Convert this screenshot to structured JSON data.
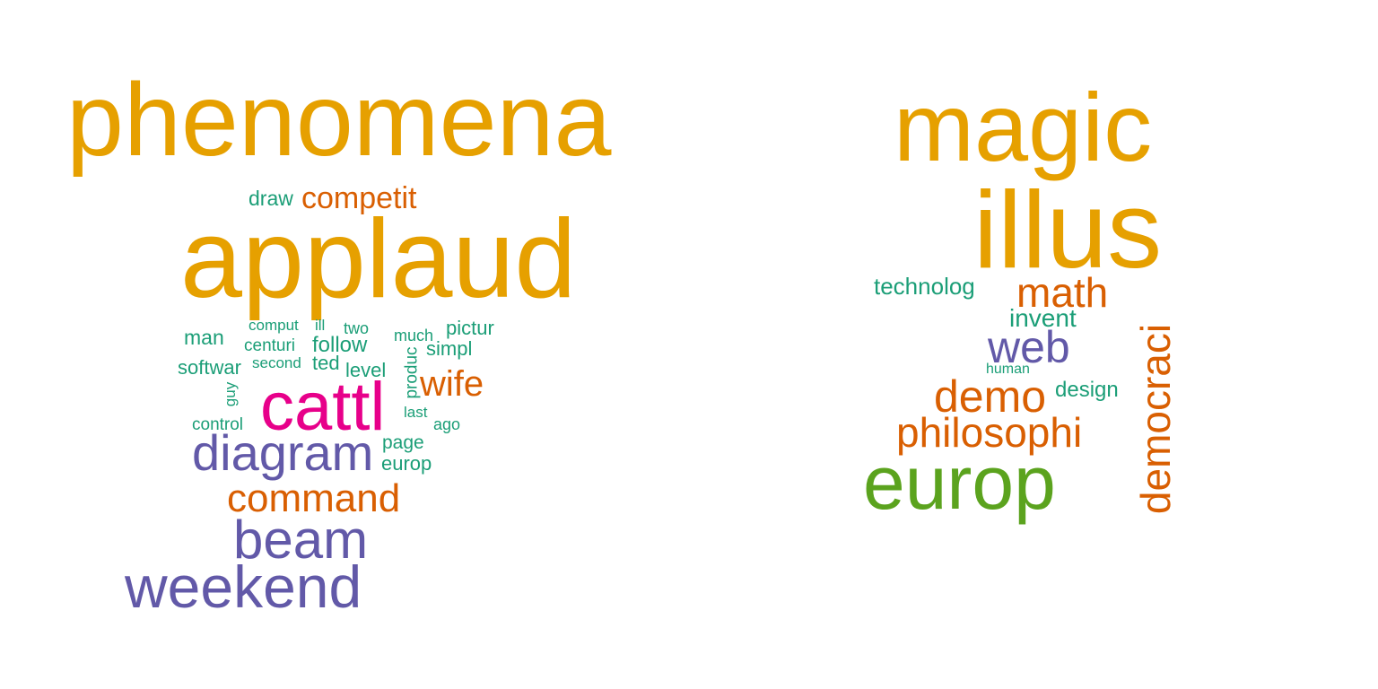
{
  "palette": {
    "gold": "#E6A000",
    "orange": "#D95F02",
    "teal": "#1B9E77",
    "purple": "#6259A8",
    "magenta": "#E7008A",
    "green": "#5BA31E"
  },
  "clouds": [
    {
      "words": [
        {
          "text": "phenomena",
          "color": "gold"
        },
        {
          "text": "draw",
          "color": "teal"
        },
        {
          "text": "competit",
          "color": "orange"
        },
        {
          "text": "applaud",
          "color": "gold"
        },
        {
          "text": "man",
          "color": "teal"
        },
        {
          "text": "comput",
          "color": "teal"
        },
        {
          "text": "ill",
          "color": "teal"
        },
        {
          "text": "two",
          "color": "teal"
        },
        {
          "text": "much",
          "color": "teal"
        },
        {
          "text": "pictur",
          "color": "teal"
        },
        {
          "text": "centuri",
          "color": "teal"
        },
        {
          "text": "follow",
          "color": "teal"
        },
        {
          "text": "simpl",
          "color": "teal"
        },
        {
          "text": "softwar",
          "color": "teal"
        },
        {
          "text": "second",
          "color": "teal"
        },
        {
          "text": "ted",
          "color": "teal"
        },
        {
          "text": "level",
          "color": "teal"
        },
        {
          "text": "produc",
          "color": "teal"
        },
        {
          "text": "wife",
          "color": "orange"
        },
        {
          "text": "guy",
          "color": "teal"
        },
        {
          "text": "cattl",
          "color": "magenta"
        },
        {
          "text": "last",
          "color": "teal"
        },
        {
          "text": "control",
          "color": "teal"
        },
        {
          "text": "ago",
          "color": "teal"
        },
        {
          "text": "diagram",
          "color": "purple"
        },
        {
          "text": "page",
          "color": "teal"
        },
        {
          "text": "europ",
          "color": "teal"
        },
        {
          "text": "command",
          "color": "orange"
        },
        {
          "text": "beam",
          "color": "purple"
        },
        {
          "text": "weekend",
          "color": "purple"
        }
      ]
    },
    {
      "words": [
        {
          "text": "magic",
          "color": "gold"
        },
        {
          "text": "illus",
          "color": "gold"
        },
        {
          "text": "technolog",
          "color": "teal"
        },
        {
          "text": "math",
          "color": "orange"
        },
        {
          "text": "invent",
          "color": "teal"
        },
        {
          "text": "web",
          "color": "purple"
        },
        {
          "text": "democraci",
          "color": "orange"
        },
        {
          "text": "human",
          "color": "teal"
        },
        {
          "text": "demo",
          "color": "orange"
        },
        {
          "text": "design",
          "color": "teal"
        },
        {
          "text": "philosophi",
          "color": "orange"
        },
        {
          "text": "europ",
          "color": "green"
        }
      ]
    }
  ]
}
